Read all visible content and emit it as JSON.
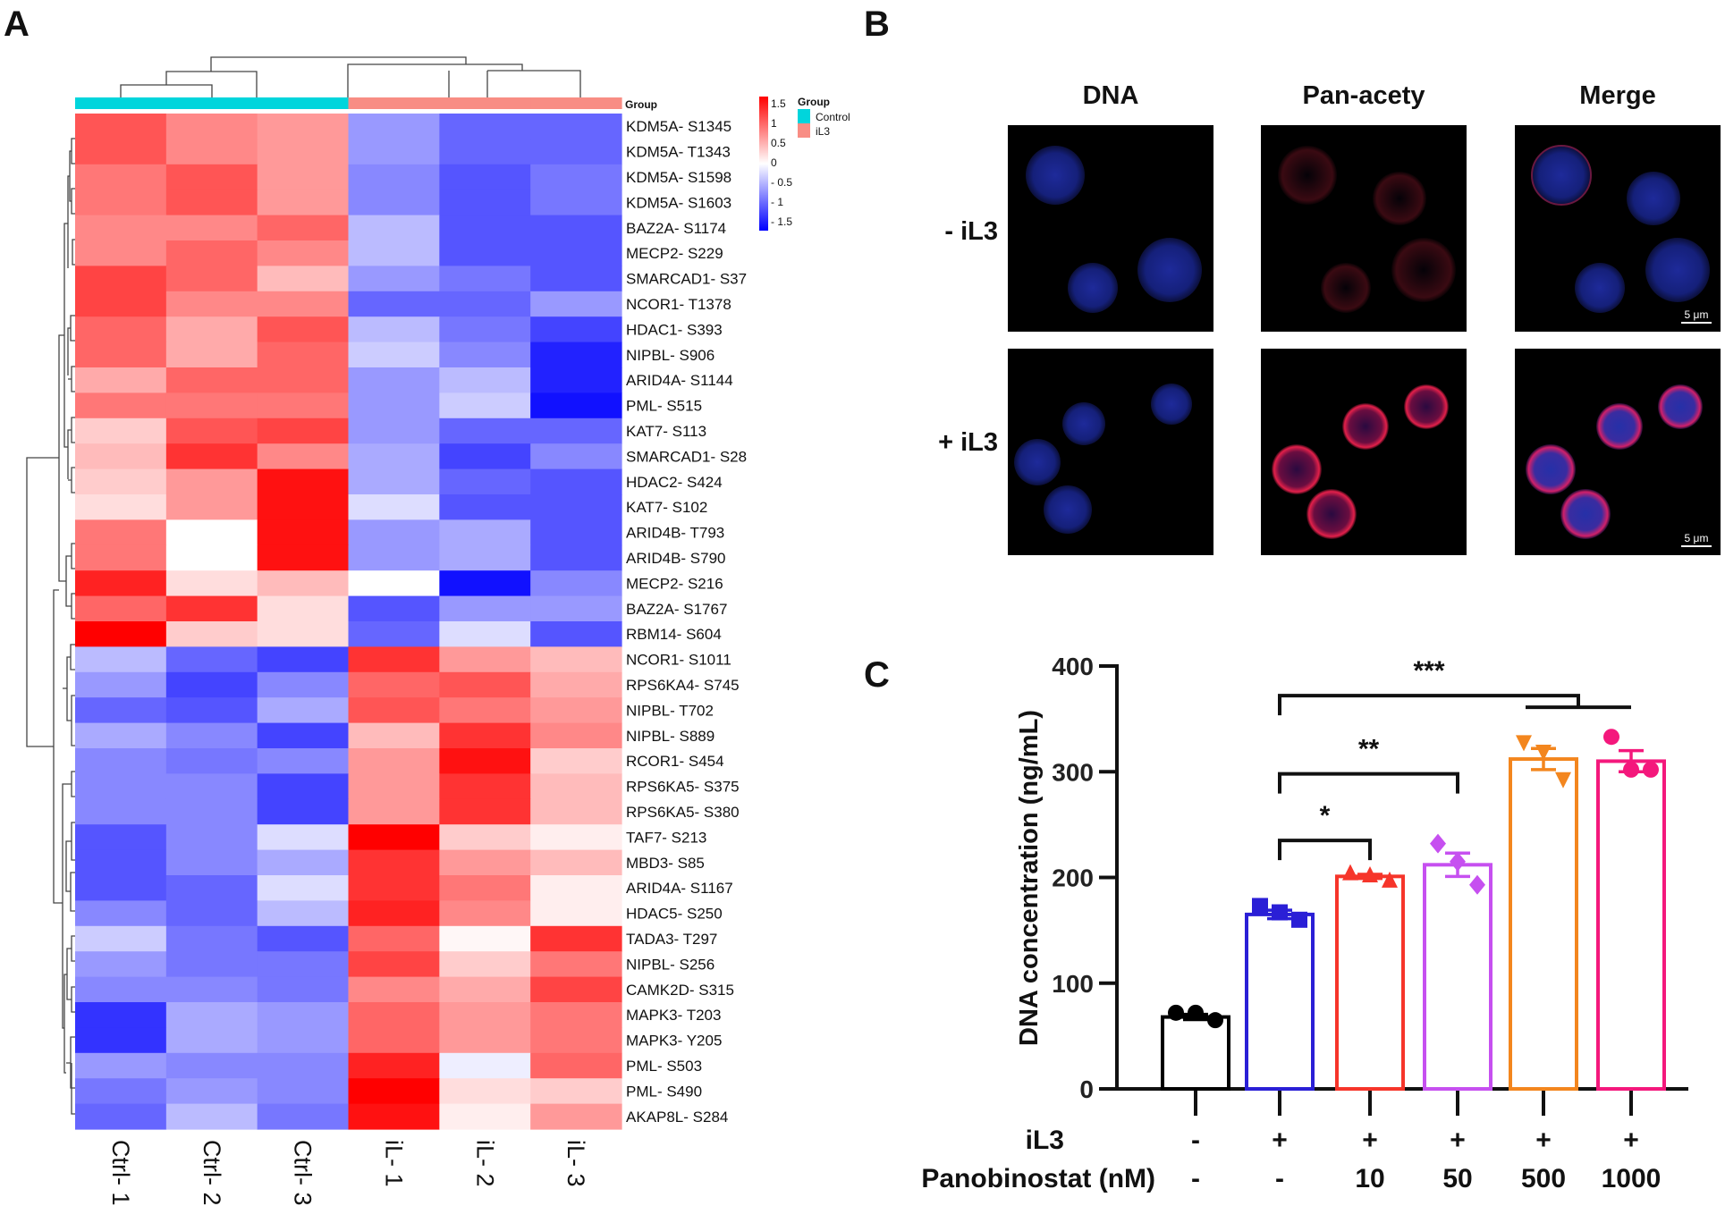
{
  "panels": {
    "a": "A",
    "b": "B",
    "c": "C"
  },
  "chart_data": [
    {
      "type": "heatmap",
      "panel": "A",
      "columns": [
        "Ctrl- 1",
        "Ctrl- 2",
        "Ctrl- 3",
        "iL- 1",
        "iL- 2",
        "iL- 3"
      ],
      "column_groups": [
        "Control",
        "Control",
        "Control",
        "iL3",
        "iL3",
        "iL3"
      ],
      "annotation_title": "Group",
      "legend": {
        "title": "Group",
        "entries": [
          {
            "label": "Control",
            "color": "#00d5dc"
          },
          {
            "label": "iL3",
            "color": "#f88d84"
          }
        ],
        "scale_ticks": [
          "1.5",
          "1",
          "0.5",
          "0",
          "- 0.5",
          "- 1",
          "- 1.5"
        ],
        "range": [
          -1.5,
          1.5
        ],
        "colors": {
          "low": "#0000ff",
          "mid": "#ffffff",
          "high": "#ff0000"
        }
      },
      "rows": [
        {
          "label": "KDM5A- S1345",
          "values": [
            1.0,
            0.7,
            0.6,
            -0.6,
            -0.9,
            -0.9
          ]
        },
        {
          "label": "KDM5A- T1343",
          "values": [
            1.0,
            0.7,
            0.6,
            -0.6,
            -0.9,
            -0.9
          ]
        },
        {
          "label": "KDM5A- S1598",
          "values": [
            0.8,
            1.0,
            0.6,
            -0.7,
            -1.0,
            -0.8
          ]
        },
        {
          "label": "KDM5A- S1603",
          "values": [
            0.8,
            1.0,
            0.6,
            -0.7,
            -1.0,
            -0.8
          ]
        },
        {
          "label": "BAZ2A- S1174",
          "values": [
            0.7,
            0.7,
            0.9,
            -0.4,
            -1.0,
            -1.0
          ]
        },
        {
          "label": "MECP2- S229",
          "values": [
            0.7,
            0.9,
            0.7,
            -0.4,
            -1.0,
            -1.0
          ]
        },
        {
          "label": "SMARCAD1- S37",
          "values": [
            1.1,
            0.9,
            0.4,
            -0.6,
            -0.8,
            -1.0
          ]
        },
        {
          "label": "NCOR1- T1378",
          "values": [
            1.1,
            0.7,
            0.7,
            -0.9,
            -0.9,
            -0.6
          ]
        },
        {
          "label": "HDAC1- S393",
          "values": [
            0.9,
            0.5,
            1.0,
            -0.4,
            -0.8,
            -1.1
          ]
        },
        {
          "label": "NIPBL- S906",
          "values": [
            0.9,
            0.5,
            0.9,
            -0.3,
            -0.7,
            -1.3
          ]
        },
        {
          "label": "ARID4A- S1144",
          "values": [
            0.5,
            0.9,
            0.9,
            -0.6,
            -0.4,
            -1.3
          ]
        },
        {
          "label": "PML- S515",
          "values": [
            0.8,
            0.8,
            0.8,
            -0.6,
            -0.3,
            -1.4
          ]
        },
        {
          "label": "KAT7- S113",
          "values": [
            0.3,
            1.0,
            1.1,
            -0.6,
            -0.9,
            -0.9
          ]
        },
        {
          "label": "SMARCAD1- S28",
          "values": [
            0.4,
            1.2,
            0.7,
            -0.5,
            -1.1,
            -0.7
          ]
        },
        {
          "label": "HDAC2- S424",
          "values": [
            0.3,
            0.6,
            1.4,
            -0.5,
            -0.9,
            -1.0
          ]
        },
        {
          "label": "KAT7- S102",
          "values": [
            0.2,
            0.6,
            1.4,
            -0.2,
            -1.0,
            -1.0
          ]
        },
        {
          "label": "ARID4B- T793",
          "values": [
            0.8,
            0.0,
            1.4,
            -0.6,
            -0.5,
            -1.0
          ]
        },
        {
          "label": "ARID4B- S790",
          "values": [
            0.8,
            0.0,
            1.4,
            -0.6,
            -0.5,
            -1.0
          ]
        },
        {
          "label": "MECP2- S216",
          "values": [
            1.3,
            0.2,
            0.4,
            0.0,
            -1.4,
            -0.7
          ]
        },
        {
          "label": "BAZ2A- S1767",
          "values": [
            0.9,
            1.2,
            0.2,
            -1.0,
            -0.6,
            -0.6
          ]
        },
        {
          "label": "RBM14- S604",
          "values": [
            1.5,
            0.3,
            0.2,
            -0.9,
            -0.2,
            -1.0
          ]
        },
        {
          "label": "NCOR1- S1011",
          "values": [
            -0.4,
            -0.9,
            -1.1,
            1.2,
            0.6,
            0.4
          ]
        },
        {
          "label": "RPS6KA4- S745",
          "values": [
            -0.6,
            -1.1,
            -0.7,
            0.9,
            1.0,
            0.5
          ]
        },
        {
          "label": "NIPBL- T702",
          "values": [
            -0.9,
            -1.0,
            -0.5,
            1.0,
            0.8,
            0.6
          ]
        },
        {
          "label": "NIPBL- S889",
          "values": [
            -0.5,
            -0.7,
            -1.1,
            0.4,
            1.2,
            0.7
          ]
        },
        {
          "label": "RCOR1- S454",
          "values": [
            -0.7,
            -0.8,
            -0.7,
            0.6,
            1.4,
            0.3
          ]
        },
        {
          "label": "RPS6KA5- S375",
          "values": [
            -0.7,
            -0.7,
            -1.1,
            0.6,
            1.2,
            0.4
          ]
        },
        {
          "label": "RPS6KA5- S380",
          "values": [
            -0.7,
            -0.7,
            -1.1,
            0.6,
            1.2,
            0.4
          ]
        },
        {
          "label": "TAF7- S213",
          "values": [
            -1.0,
            -0.7,
            -0.2,
            1.5,
            0.3,
            0.1
          ]
        },
        {
          "label": "MBD3- S85",
          "values": [
            -1.0,
            -0.7,
            -0.5,
            1.2,
            0.6,
            0.4
          ]
        },
        {
          "label": "ARID4A- S1167",
          "values": [
            -1.0,
            -0.9,
            -0.2,
            1.2,
            0.8,
            0.1
          ]
        },
        {
          "label": "HDAC5- S250",
          "values": [
            -0.7,
            -0.9,
            -0.4,
            1.3,
            0.7,
            0.1
          ]
        },
        {
          "label": "TADA3- T297",
          "values": [
            -0.3,
            -0.8,
            -1.0,
            0.9,
            0.05,
            1.2
          ]
        },
        {
          "label": "NIPBL- S256",
          "values": [
            -0.6,
            -0.8,
            -0.8,
            1.1,
            0.3,
            0.8
          ]
        },
        {
          "label": "CAMK2D- S315",
          "values": [
            -0.7,
            -0.7,
            -0.8,
            0.7,
            0.5,
            1.1
          ]
        },
        {
          "label": "MAPK3- T203",
          "values": [
            -1.2,
            -0.5,
            -0.6,
            0.9,
            0.6,
            0.8
          ]
        },
        {
          "label": "MAPK3- Y205",
          "values": [
            -1.2,
            -0.5,
            -0.6,
            0.9,
            0.6,
            0.8
          ]
        },
        {
          "label": "PML- S503",
          "values": [
            -0.6,
            -0.7,
            -0.7,
            1.3,
            -0.1,
            0.9
          ]
        },
        {
          "label": "PML- S490",
          "values": [
            -0.8,
            -0.6,
            -0.7,
            1.5,
            0.2,
            0.3
          ]
        },
        {
          "label": "AKAP8L- S284",
          "values": [
            -0.9,
            -0.4,
            -0.8,
            1.4,
            0.1,
            0.6
          ]
        }
      ]
    },
    {
      "type": "bar",
      "panel": "C",
      "ylabel": "DNA concentration (ng/mL)",
      "ylim": [
        0,
        400
      ],
      "yticks": [
        0,
        100,
        200,
        300,
        400
      ],
      "row_labels": [
        "iL3",
        "Panobinostat (nM)"
      ],
      "groups": [
        {
          "il3": "-",
          "panobinostat": "-",
          "value": 68,
          "sem": 2.5,
          "points": [
            72,
            72,
            65
          ],
          "color": "#000000",
          "marker": "circle"
        },
        {
          "il3": "+",
          "panobinostat": "-",
          "value": 165,
          "sem": 4,
          "points": [
            173,
            167,
            160
          ],
          "color": "#2a1fd6",
          "marker": "square"
        },
        {
          "il3": "+",
          "panobinostat": "10",
          "value": 201,
          "sem": 2,
          "points": [
            205,
            203,
            198
          ],
          "color": "#f6352a",
          "marker": "triangle-up"
        },
        {
          "il3": "+",
          "panobinostat": "50",
          "value": 212,
          "sem": 11,
          "points": [
            232,
            215,
            193
          ],
          "color": "#c650f0",
          "marker": "diamond"
        },
        {
          "il3": "+",
          "panobinostat": "500",
          "value": 312,
          "sem": 10,
          "points": [
            327,
            318,
            292
          ],
          "color": "#f3861e",
          "marker": "triangle-down"
        },
        {
          "il3": "+",
          "panobinostat": "1000",
          "value": 310,
          "sem": 10,
          "points": [
            333,
            302,
            302
          ],
          "color": "#f4187c",
          "marker": "circle"
        }
      ],
      "significance": [
        {
          "from": 1,
          "to": 2,
          "level": 235,
          "label": "*"
        },
        {
          "from": 1,
          "to": 3,
          "level": 298,
          "label": "**"
        },
        {
          "from": 1,
          "to": [
            4,
            5
          ],
          "level": 372,
          "label": "***"
        }
      ]
    }
  ],
  "microscopy": {
    "columns": [
      "DNA",
      "Pan-acety",
      "Merge"
    ],
    "rows": [
      "- iL3",
      "+ iL3"
    ],
    "scale_bar": "5 μm"
  }
}
